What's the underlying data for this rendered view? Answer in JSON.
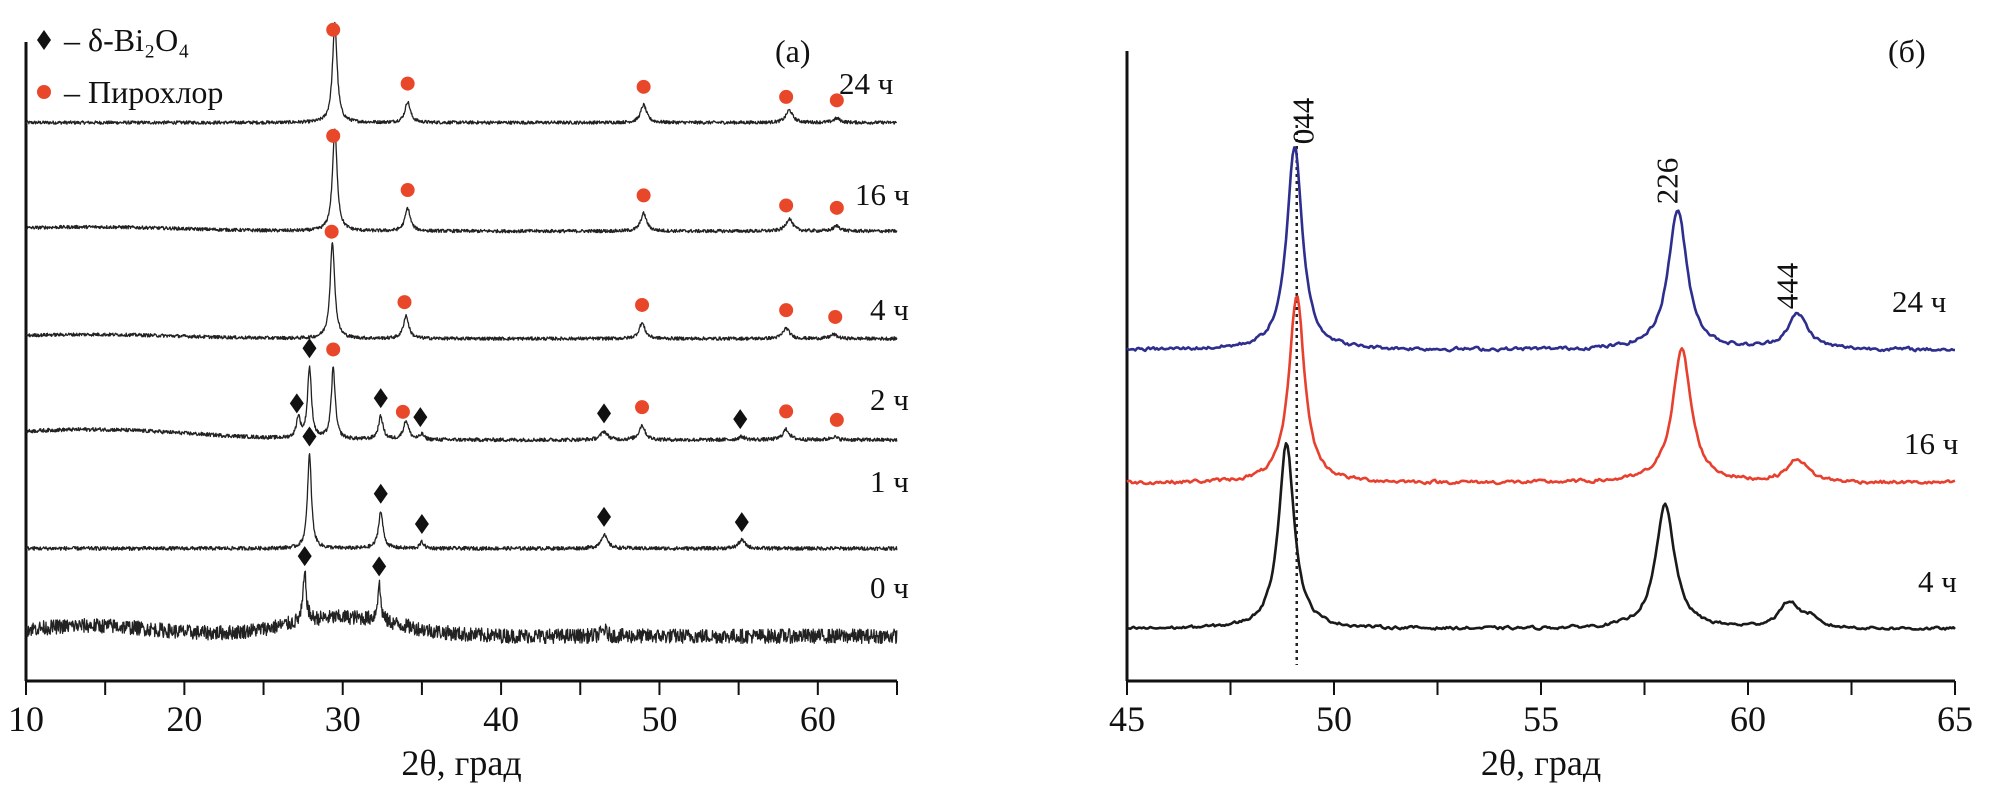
{
  "chart_data": [
    {
      "type": "line",
      "panel_label": "(а)",
      "xlabel": "2θ, град",
      "ylabel": "",
      "xlim": [
        10,
        65
      ],
      "ylim": [
        0,
        640
      ],
      "x_ticks": [
        10,
        20,
        30,
        40,
        50,
        60
      ],
      "x_tick_labels": [
        "10",
        "20",
        "30",
        "40",
        "50",
        "60"
      ],
      "x_minor_step": 5,
      "grid": false,
      "legend_position": "top-left",
      "legend": [
        {
          "marker": "diamond",
          "color": "#111111",
          "text": "– δ-Bi₂O₄"
        },
        {
          "marker": "circle",
          "color": "#e8472a",
          "text": "– Пирохлор"
        }
      ],
      "series": [
        {
          "name": "24 ч",
          "label": "24 ч",
          "color": "#222222",
          "offset": 535,
          "noise": 1.6,
          "peaks": [
            [
              29.5,
              95,
              0.35
            ],
            [
              34.1,
              20,
              0.4
            ],
            [
              49.0,
              17,
              0.45
            ],
            [
              58.2,
              12,
              0.5
            ],
            [
              61.2,
              4,
              0.5
            ]
          ],
          "humps": [],
          "markers": [
            [
              "circle",
              29.4
            ],
            [
              "circle",
              34.1
            ],
            [
              "circle",
              49.0
            ],
            [
              "circle",
              58.0
            ],
            [
              "circle",
              61.2
            ]
          ]
        },
        {
          "name": "16 ч",
          "label": "16 ч",
          "color": "#222222",
          "offset": 431,
          "noise": 1.6,
          "peaks": [
            [
              29.5,
              98,
              0.35
            ],
            [
              34.1,
              22,
              0.4
            ],
            [
              49.0,
              17,
              0.45
            ],
            [
              58.2,
              12,
              0.5
            ],
            [
              61.2,
              5,
              0.5
            ]
          ],
          "humps": [
            [
              14,
              4,
              8
            ]
          ],
          "markers": [
            [
              "circle",
              29.4
            ],
            [
              "circle",
              34.1
            ],
            [
              "circle",
              49.0
            ],
            [
              "circle",
              58.0
            ],
            [
              "circle",
              61.2
            ]
          ]
        },
        {
          "name": "4 ч",
          "label": "4 ч",
          "color": "#222222",
          "offset": 328,
          "noise": 1.6,
          "peaks": [
            [
              29.35,
              92,
              0.35
            ],
            [
              34.0,
              22,
              0.4
            ],
            [
              48.9,
              15,
              0.45
            ],
            [
              58.0,
              10,
              0.5
            ],
            [
              61.0,
              4,
              0.5
            ]
          ],
          "humps": [
            [
              14,
              4,
              8
            ]
          ],
          "markers": [
            [
              "circle",
              29.3
            ],
            [
              "circle",
              33.9
            ],
            [
              "circle",
              48.9
            ],
            [
              "circle",
              58.0
            ],
            [
              "circle",
              61.1
            ]
          ]
        },
        {
          "name": "2 ч",
          "label": "2 ч",
          "color": "#222222",
          "offset": 231,
          "noise": 1.8,
          "peaks": [
            [
              27.2,
              20,
              0.3
            ],
            [
              27.9,
              68,
              0.3
            ],
            [
              29.4,
              68,
              0.3
            ],
            [
              32.4,
              22,
              0.35
            ],
            [
              34.0,
              18,
              0.4
            ],
            [
              35.0,
              5,
              0.3
            ],
            [
              46.5,
              8,
              0.5
            ],
            [
              48.9,
              14,
              0.45
            ],
            [
              55.2,
              3,
              0.5
            ],
            [
              58.0,
              10,
              0.5
            ],
            [
              61.0,
              3,
              0.5
            ]
          ],
          "humps": [
            [
              14,
              10,
              9
            ]
          ],
          "markers": [
            [
              "diamond",
              27.1
            ],
            [
              "diamond",
              27.9
            ],
            [
              "circle",
              29.4
            ],
            [
              "diamond",
              32.4
            ],
            [
              "circle",
              33.8
            ],
            [
              "diamond",
              34.9
            ],
            [
              "diamond",
              46.5
            ],
            [
              "circle",
              48.9
            ],
            [
              "diamond",
              55.1
            ],
            [
              "circle",
              58.0
            ],
            [
              "circle",
              61.2
            ]
          ]
        },
        {
          "name": "1 ч",
          "label": "1 ч",
          "color": "#222222",
          "offset": 127,
          "noise": 1.8,
          "peaks": [
            [
              27.9,
              90,
              0.3
            ],
            [
              32.4,
              35,
              0.35
            ],
            [
              35.0,
              6,
              0.3
            ],
            [
              46.5,
              13,
              0.5
            ],
            [
              55.2,
              8,
              0.5
            ]
          ],
          "humps": [],
          "markers": [
            [
              "diamond",
              27.9
            ],
            [
              "diamond",
              32.4
            ],
            [
              "diamond",
              35.0
            ],
            [
              "diamond",
              46.5
            ],
            [
              "diamond",
              55.2
            ]
          ]
        },
        {
          "name": "0 ч",
          "label": "0 ч",
          "color": "#222222",
          "offset": 43,
          "noise": 7,
          "peaks": [
            [
              27.6,
              45,
              0.25
            ],
            [
              32.3,
              35,
              0.25
            ],
            [
              46.5,
              6,
              0.4
            ]
          ],
          "humps": [
            [
              14,
              10,
              6
            ],
            [
              30,
              18,
              5
            ]
          ],
          "markers": [
            [
              "diamond",
              27.6
            ],
            [
              "diamond",
              32.3
            ]
          ]
        }
      ]
    },
    {
      "type": "line",
      "panel_label": "(б)",
      "xlabel": "2θ, град",
      "ylabel": "",
      "xlim": [
        45,
        65
      ],
      "ylim": [
        0,
        630
      ],
      "x_ticks": [
        45,
        50,
        55,
        60,
        65
      ],
      "x_tick_labels": [
        "45",
        "50",
        "55",
        "60",
        "65"
      ],
      "x_minor_step": 2.5,
      "grid": false,
      "reference_line": {
        "x": 49.1,
        "style": "dotted"
      },
      "annotations": [
        {
          "text": "044",
          "x": 49.5,
          "y": 560
        },
        {
          "text": "226",
          "x": 58.3,
          "y": 500
        },
        {
          "text": "444",
          "x": 61.2,
          "y": 395
        }
      ],
      "series": [
        {
          "name": "24 ч",
          "label": "24 ч",
          "color": "#2e2e8e",
          "offset": 331,
          "noise": 3,
          "peaks": [
            [
              49.05,
              204,
              0.45
            ],
            [
              58.3,
              140,
              0.55
            ],
            [
              61.2,
              35,
              0.6
            ]
          ],
          "humps": []
        },
        {
          "name": "16 ч",
          "label": "16 ч",
          "color": "#e8402e",
          "offset": 198,
          "noise": 3,
          "peaks": [
            [
              49.1,
              188,
              0.45
            ],
            [
              58.4,
              133,
              0.55
            ],
            [
              61.2,
              23,
              0.6
            ]
          ],
          "humps": []
        },
        {
          "name": "4 ч",
          "label": "4 ч",
          "color": "#1a1a1a",
          "offset": 52,
          "noise": 2.5,
          "peaks": [
            [
              48.85,
              187,
              0.45
            ],
            [
              58.0,
              124,
              0.55
            ],
            [
              61.0,
              26,
              0.6
            ],
            [
              61.5,
              8,
              0.4
            ]
          ],
          "humps": []
        }
      ]
    }
  ]
}
